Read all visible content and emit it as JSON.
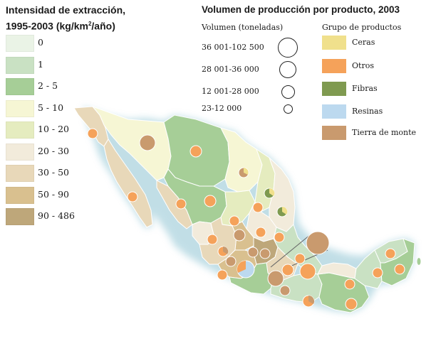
{
  "legend_intensity": {
    "title_line1": "Intensidad de extracción,",
    "title_line2_prefix": "1995-2003 (kg/km",
    "title_line2_sup": "2",
    "title_line2_suffix": "/año)",
    "classes": [
      {
        "label": "0",
        "color": "#eaf3e6"
      },
      {
        "label": "1",
        "color": "#c9e1c3"
      },
      {
        "label": "2 - 5",
        "color": "#a6ce97"
      },
      {
        "label": "5 - 10",
        "color": "#f6f6d4"
      },
      {
        "label": "10 - 20",
        "color": "#e5ecbf"
      },
      {
        "label": "20 - 30",
        "color": "#f2ebdb"
      },
      {
        "label": "30 - 50",
        "color": "#e8d8b9"
      },
      {
        "label": "50 - 90",
        "color": "#d9c08f"
      },
      {
        "label": "90 - 486",
        "color": "#bea77a"
      }
    ]
  },
  "legend_volume": {
    "title": "Volumen de producción por producto, 2003",
    "subtitle": "Volumen (toneladas)",
    "classes": [
      {
        "label": "36 001-102 500"
      },
      {
        "label": "28 001-36 000"
      },
      {
        "label": "12 001-28 000"
      },
      {
        "label": "23-12 000"
      }
    ]
  },
  "legend_products": {
    "title": "Grupo de productos",
    "items": [
      {
        "label": "Ceras",
        "color": "#f0e08c"
      },
      {
        "label": "Otros",
        "color": "#f5a25a"
      },
      {
        "label": "Fibras",
        "color": "#7f9a50"
      },
      {
        "label": "Resinas",
        "color": "#bcd9ef"
      },
      {
        "label": "Tierra de monte",
        "color": "#c99a6e"
      }
    ]
  },
  "colors": {
    "sea_halo": "#8fc4d3",
    "border": "#ffffff",
    "circle_outline": "#ffffff"
  }
}
